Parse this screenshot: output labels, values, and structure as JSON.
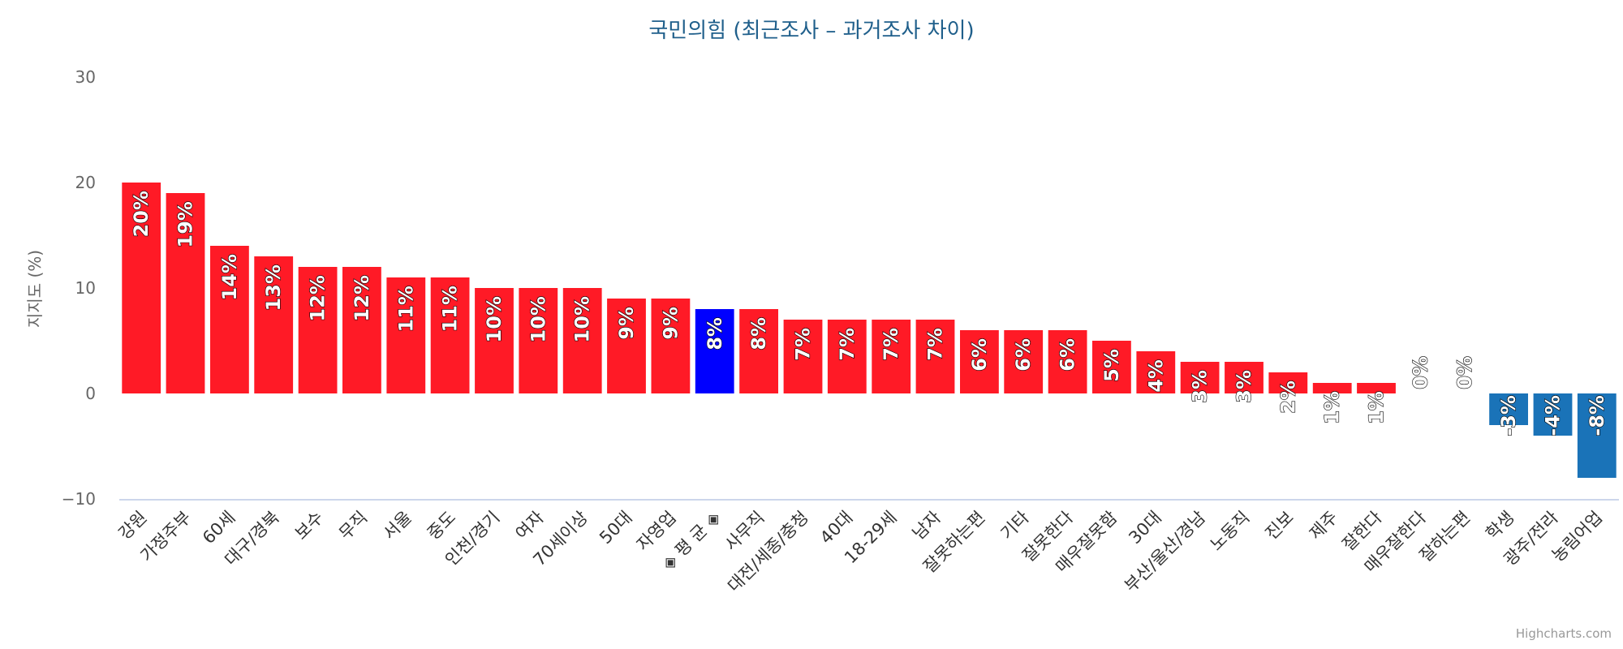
{
  "chart_data": {
    "type": "bar",
    "title": "국민의힘 (최근조사 – 과거조사 차이)",
    "ylabel": "지지도 (%)",
    "xlabel": "",
    "ylim": [
      -10,
      30
    ],
    "yticks": [
      -10,
      0,
      10,
      20,
      30
    ],
    "grid": false,
    "legend": "none",
    "categories": [
      "강원",
      "가정주부",
      "60세",
      "대구/경북",
      "보수",
      "무직",
      "서울",
      "중도",
      "인천/경기",
      "여자",
      "70세이상",
      "50대",
      "자영업",
      "◈ 평 균 ◈",
      "사무직",
      "대전/세종/충청",
      "40대",
      "18-29세",
      "남자",
      "잘못하는편",
      "기타",
      "잘못한다",
      "매우잘못함",
      "30대",
      "부산/울산/경남",
      "노동직",
      "진보",
      "제주",
      "잘한다",
      "매우잘한다",
      "잘하는편",
      "학생",
      "광주/전라",
      "농림어업"
    ],
    "values": [
      20,
      19,
      14,
      13,
      12,
      12,
      11,
      11,
      10,
      10,
      10,
      9,
      9,
      8,
      8,
      7,
      7,
      7,
      7,
      6,
      6,
      6,
      5,
      4,
      3,
      3,
      2,
      1,
      1,
      0,
      0,
      -3,
      -4,
      -8
    ],
    "labels": [
      "20%",
      "19%",
      "14%",
      "13%",
      "12%",
      "12%",
      "11%",
      "11%",
      "10%",
      "10%",
      "10%",
      "9%",
      "9%",
      "8%",
      "8%",
      "7%",
      "7%",
      "7%",
      "7%",
      "6%",
      "6%",
      "6%",
      "5%",
      "4%",
      "3%",
      "3%",
      "2%",
      "1%",
      "1%",
      "0%",
      "0%",
      "-3%",
      "-4%",
      "-8%"
    ],
    "highlight_category": "◈ 평 균 ◈",
    "colors": {
      "positive": "#ff1a26",
      "negative": "#1a73b8",
      "highlight": "#0000ff",
      "title": "#1f5f8b",
      "axis_text": "#666666",
      "axis_line": "#ccd6eb"
    }
  },
  "credit": "Highcharts.com"
}
